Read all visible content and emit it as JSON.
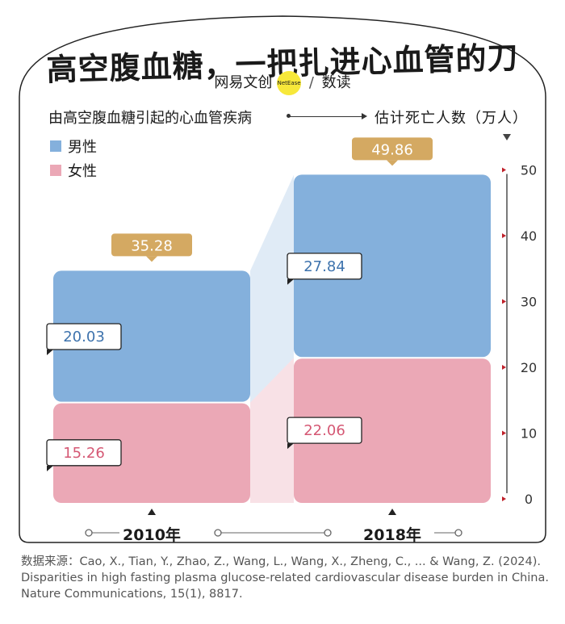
{
  "header": {
    "title": "高空腹血糖，一把扎进心血管的刀",
    "brand_left": "网易文创",
    "brand_badge": "NetEase",
    "brand_sep": "/",
    "brand_right": "数读"
  },
  "subtitle": {
    "left": "由高空腹血糖引起的心血管疾病",
    "right": "估计死亡人数（万人）"
  },
  "colors": {
    "male": "#84b0dc",
    "female": "#eba8b6",
    "total_badge": "#d4a962",
    "axis_marker": "#c0202a",
    "male_text": "#3e73ad",
    "female_text": "#d55874"
  },
  "chart_data": {
    "type": "bar",
    "subtype": "stacked",
    "title": "高空腹血糖，一把扎进心血管的刀",
    "ylabel": "估计死亡人数（万人）",
    "categories": [
      "2010年",
      "2018年"
    ],
    "series": [
      {
        "name": "女性",
        "values": [
          15.26,
          22.06
        ],
        "labels": [
          "15.26",
          "22.06"
        ]
      },
      {
        "name": "男性",
        "values": [
          20.03,
          27.84
        ],
        "labels": [
          "20.03",
          "27.84"
        ]
      }
    ],
    "totals": [
      35.28,
      49.86
    ],
    "total_labels": [
      "35.28",
      "49.86"
    ],
    "ylim": [
      0,
      50
    ],
    "yticks": [
      0,
      10,
      20,
      30,
      40,
      50
    ],
    "ytick_labels": [
      "0",
      "10",
      "20",
      "30",
      "40",
      "50"
    ],
    "legend": [
      {
        "name": "男性",
        "color": "#84b0dc"
      },
      {
        "name": "女性",
        "color": "#eba8b6"
      }
    ],
    "legend_position": "top-left",
    "grid": false
  },
  "source": "数据来源：Cao, X., Tian, Y., Zhao, Z., Wang, L., Wang, X., Zheng, C., ... & Wang, Z. (2024). Disparities in high fasting plasma glucose-related cardiovascular disease burden in China. Nature Communications, 15(1), 8817."
}
